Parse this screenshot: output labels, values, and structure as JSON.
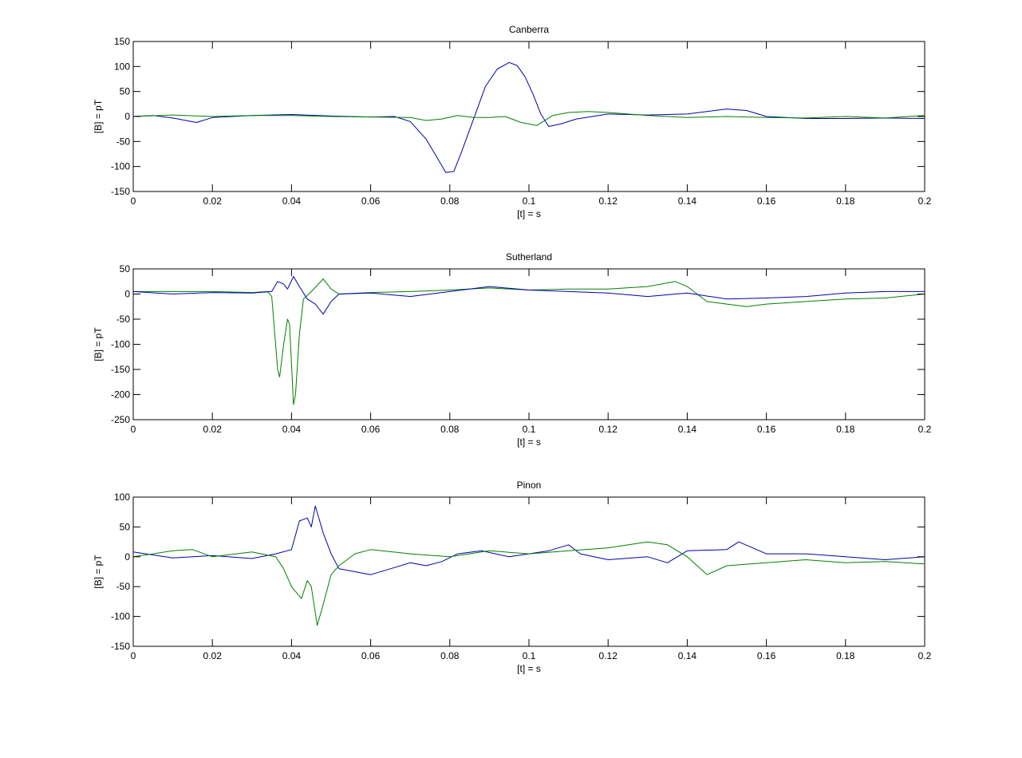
{
  "chart_data": [
    {
      "type": "line",
      "title": "Canberra",
      "xlabel": "[t] = s",
      "ylabel": "[B] = pT",
      "xlim": [
        0,
        0.2
      ],
      "ylim": [
        -150,
        150
      ],
      "xticks": [
        0,
        0.02,
        0.04,
        0.06,
        0.08,
        0.1,
        0.12,
        0.14,
        0.16,
        0.18,
        0.2
      ],
      "xtick_labels": [
        "0",
        "0.02",
        "0.04",
        "0.06",
        "0.08",
        "0.1",
        "0.12",
        "0.14",
        "0.16",
        "0.18",
        "0.2"
      ],
      "yticks": [
        -150,
        -100,
        -50,
        0,
        50,
        100,
        150
      ],
      "ytick_labels": [
        "-150",
        "-100",
        "-50",
        "0",
        "50",
        "100",
        "150"
      ],
      "grid": false,
      "series": [
        {
          "color": "#0000aa",
          "x": [
            0,
            0.005,
            0.01,
            0.016,
            0.02,
            0.03,
            0.04,
            0.05,
            0.06,
            0.066,
            0.07,
            0.074,
            0.077,
            0.079,
            0.081,
            0.083,
            0.086,
            0.089,
            0.092,
            0.095,
            0.097,
            0.099,
            0.101,
            0.103,
            0.105,
            0.108,
            0.112,
            0.116,
            0.12,
            0.13,
            0.14,
            0.15,
            0.155,
            0.16,
            0.17,
            0.18,
            0.19,
            0.2
          ],
          "y": [
            0,
            2,
            -3,
            -12,
            -2,
            2,
            4,
            1,
            -1,
            0,
            -10,
            -45,
            -85,
            -112,
            -110,
            -70,
            -5,
            60,
            95,
            108,
            102,
            80,
            45,
            5,
            -20,
            -15,
            -5,
            0,
            5,
            3,
            5,
            15,
            12,
            0,
            -4,
            -4,
            -3,
            -4
          ]
        },
        {
          "color": "#008000",
          "x": [
            0,
            0.01,
            0.02,
            0.03,
            0.04,
            0.05,
            0.06,
            0.07,
            0.074,
            0.078,
            0.082,
            0.086,
            0.09,
            0.094,
            0.098,
            0.102,
            0.106,
            0.11,
            0.115,
            0.12,
            0.13,
            0.14,
            0.15,
            0.16,
            0.17,
            0.18,
            0.19,
            0.2
          ],
          "y": [
            0,
            3,
            0,
            2,
            2,
            0,
            -1,
            -2,
            -8,
            -5,
            2,
            -2,
            -2,
            0,
            -12,
            -18,
            2,
            8,
            10,
            8,
            2,
            -2,
            0,
            -2,
            -3,
            0,
            -3,
            2
          ]
        }
      ]
    },
    {
      "type": "line",
      "title": "Sutherland",
      "xlabel": "[t] = s",
      "ylabel": "[B] = pT",
      "xlim": [
        0,
        0.2
      ],
      "ylim": [
        -250,
        50
      ],
      "xticks": [
        0,
        0.02,
        0.04,
        0.06,
        0.08,
        0.1,
        0.12,
        0.14,
        0.16,
        0.18,
        0.2
      ],
      "xtick_labels": [
        "0",
        "0.02",
        "0.04",
        "0.06",
        "0.08",
        "0.1",
        "0.12",
        "0.14",
        "0.16",
        "0.18",
        "0.2"
      ],
      "yticks": [
        -250,
        -200,
        -150,
        -100,
        -50,
        0,
        50
      ],
      "ytick_labels": [
        "-250",
        "-200",
        "-150",
        "-100",
        "-50",
        "0",
        "50"
      ],
      "grid": false,
      "series": [
        {
          "color": "#008000",
          "x": [
            0,
            0.01,
            0.02,
            0.03,
            0.034,
            0.035,
            0.0365,
            0.037,
            0.038,
            0.039,
            0.0395,
            0.0405,
            0.041,
            0.042,
            0.043,
            0.045,
            0.048,
            0.05,
            0.052,
            0.06,
            0.07,
            0.08,
            0.09,
            0.1,
            0.11,
            0.12,
            0.13,
            0.137,
            0.14,
            0.145,
            0.15,
            0.155,
            0.16,
            0.17,
            0.18,
            0.19,
            0.2
          ],
          "y": [
            5,
            5,
            5,
            3,
            5,
            -5,
            -150,
            -165,
            -100,
            -50,
            -60,
            -220,
            -200,
            -80,
            -10,
            5,
            30,
            10,
            0,
            3,
            5,
            8,
            12,
            8,
            10,
            10,
            15,
            25,
            15,
            -15,
            -20,
            -25,
            -20,
            -15,
            -10,
            -8,
            0
          ]
        },
        {
          "color": "#0000aa",
          "x": [
            0,
            0.01,
            0.02,
            0.03,
            0.035,
            0.0365,
            0.038,
            0.039,
            0.0405,
            0.042,
            0.044,
            0.046,
            0.048,
            0.05,
            0.052,
            0.06,
            0.07,
            0.08,
            0.09,
            0.1,
            0.11,
            0.12,
            0.13,
            0.14,
            0.15,
            0.16,
            0.17,
            0.18,
            0.19,
            0.2
          ],
          "y": [
            5,
            0,
            3,
            2,
            5,
            25,
            20,
            10,
            35,
            15,
            -10,
            -20,
            -40,
            -15,
            0,
            2,
            -5,
            5,
            15,
            8,
            5,
            2,
            -5,
            2,
            -10,
            -8,
            -5,
            2,
            5,
            5
          ]
        }
      ]
    },
    {
      "type": "line",
      "title": "Pinon",
      "xlabel": "[t] = s",
      "ylabel": "[B] = pT",
      "xlim": [
        0,
        0.2
      ],
      "ylim": [
        -150,
        100
      ],
      "xticks": [
        0,
        0.02,
        0.04,
        0.06,
        0.08,
        0.1,
        0.12,
        0.14,
        0.16,
        0.18,
        0.2
      ],
      "xtick_labels": [
        "0",
        "0.02",
        "0.04",
        "0.06",
        "0.08",
        "0.1",
        "0.12",
        "0.14",
        "0.16",
        "0.18",
        "0.2"
      ],
      "yticks": [
        -150,
        -100,
        -50,
        0,
        50,
        100
      ],
      "ytick_labels": [
        "-150",
        "-100",
        "-50",
        "0",
        "50",
        "100"
      ],
      "grid": false,
      "series": [
        {
          "color": "#0000aa",
          "x": [
            0,
            0.01,
            0.02,
            0.03,
            0.036,
            0.04,
            0.042,
            0.044,
            0.045,
            0.046,
            0.048,
            0.05,
            0.052,
            0.056,
            0.06,
            0.065,
            0.07,
            0.074,
            0.078,
            0.082,
            0.088,
            0.095,
            0.1,
            0.105,
            0.11,
            0.113,
            0.12,
            0.13,
            0.135,
            0.14,
            0.15,
            0.153,
            0.16,
            0.17,
            0.18,
            0.19,
            0.2
          ],
          "y": [
            8,
            -2,
            2,
            -3,
            5,
            12,
            60,
            65,
            50,
            85,
            40,
            5,
            -20,
            -25,
            -30,
            -20,
            -10,
            -15,
            -8,
            5,
            10,
            0,
            5,
            10,
            20,
            5,
            -5,
            0,
            -10,
            10,
            12,
            25,
            5,
            5,
            0,
            -5,
            0
          ]
        },
        {
          "color": "#008000",
          "x": [
            0,
            0.005,
            0.01,
            0.015,
            0.02,
            0.03,
            0.036,
            0.038,
            0.04,
            0.0425,
            0.044,
            0.045,
            0.0465,
            0.048,
            0.05,
            0.052,
            0.056,
            0.06,
            0.07,
            0.08,
            0.09,
            0.1,
            0.11,
            0.12,
            0.13,
            0.135,
            0.14,
            0.145,
            0.15,
            0.16,
            0.17,
            0.18,
            0.19,
            0.2
          ],
          "y": [
            0,
            5,
            10,
            12,
            0,
            8,
            0,
            -20,
            -50,
            -70,
            -40,
            -50,
            -115,
            -80,
            -30,
            -15,
            5,
            12,
            5,
            0,
            10,
            5,
            10,
            15,
            25,
            20,
            0,
            -30,
            -15,
            -10,
            -5,
            -10,
            -8,
            -12
          ]
        }
      ]
    }
  ]
}
